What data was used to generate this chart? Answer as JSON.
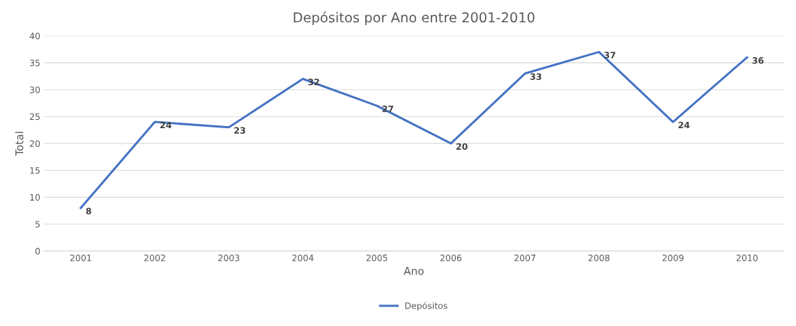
{
  "chart_data": {
    "type": "line",
    "title": "Depósitos por Ano entre 2001-2010",
    "xlabel": "Ano",
    "ylabel": "Total",
    "categories": [
      "2001",
      "2002",
      "2003",
      "2004",
      "2005",
      "2006",
      "2007",
      "2008",
      "2009",
      "2010"
    ],
    "series": [
      {
        "name": "Depósitos",
        "color": "#4472c4",
        "values": [
          8,
          24,
          23,
          32,
          27,
          20,
          33,
          37,
          24,
          36
        ]
      }
    ],
    "ylim": [
      0,
      40
    ],
    "yticks": [
      0,
      5,
      10,
      15,
      20,
      25,
      30,
      35,
      40
    ],
    "grid": "y",
    "legend": "bottom",
    "data_labels": true,
    "marker": "none",
    "line_style": "solid"
  }
}
